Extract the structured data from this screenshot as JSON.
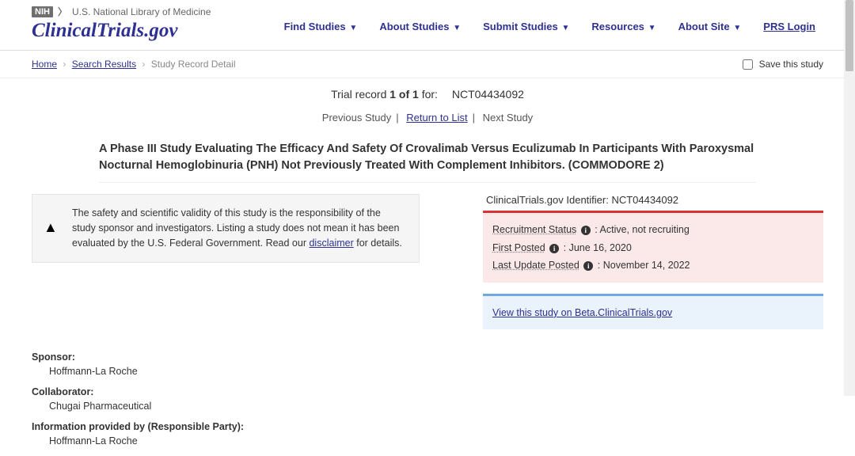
{
  "header": {
    "nih_badge": "NIH",
    "nih_text": "U.S. National Library of Medicine",
    "site_name": "ClinicalTrials.gov",
    "nav": {
      "find": "Find Studies",
      "about": "About Studies",
      "submit": "Submit Studies",
      "resources": "Resources",
      "site": "About Site",
      "prs": "PRS Login"
    }
  },
  "breadcrumb": {
    "home": "Home",
    "search": "Search Results",
    "current": "Study Record Detail",
    "save": "Save this study"
  },
  "record": {
    "prefix": "Trial record ",
    "pos": "1 of 1",
    "suffix": " for:",
    "nct": "NCT04434092"
  },
  "studynav": {
    "prev": "Previous Study",
    "return": "Return to List",
    "next": "Next Study"
  },
  "title": "A Phase III Study Evaluating The Efficacy And Safety Of Crovalimab Versus Eculizumab In Participants With Paroxysmal Nocturnal Hemoglobinuria (PNH) Not Previously Treated With Complement Inhibitors. (COMMODORE 2)",
  "disclaimer": {
    "text_pre": "The safety and scientific validity of this study is the responsibility of the study sponsor and investigators. Listing a study does not mean it has been evaluated by the U.S. Federal Government. Read our ",
    "link": "disclaimer",
    "text_post": " for details."
  },
  "identifier": {
    "label": "ClinicalTrials.gov Identifier: ",
    "value": "NCT04434092"
  },
  "status": {
    "recruit_label": "Recruitment Status",
    "recruit_value": " : Active, not recruiting",
    "first_label": "First Posted",
    "first_value": " : June 16, 2020",
    "last_label": "Last Update Posted",
    "last_value": " : November 14, 2022"
  },
  "beta_link": "View this study on Beta.ClinicalTrials.gov",
  "details": {
    "sponsor_label": "Sponsor:",
    "sponsor_value": "Hoffmann-La Roche",
    "collab_label": "Collaborator:",
    "collab_value": "Chugai Pharmaceutical",
    "info_label": "Information provided by (Responsible Party):",
    "info_value": "Hoffmann-La Roche"
  }
}
